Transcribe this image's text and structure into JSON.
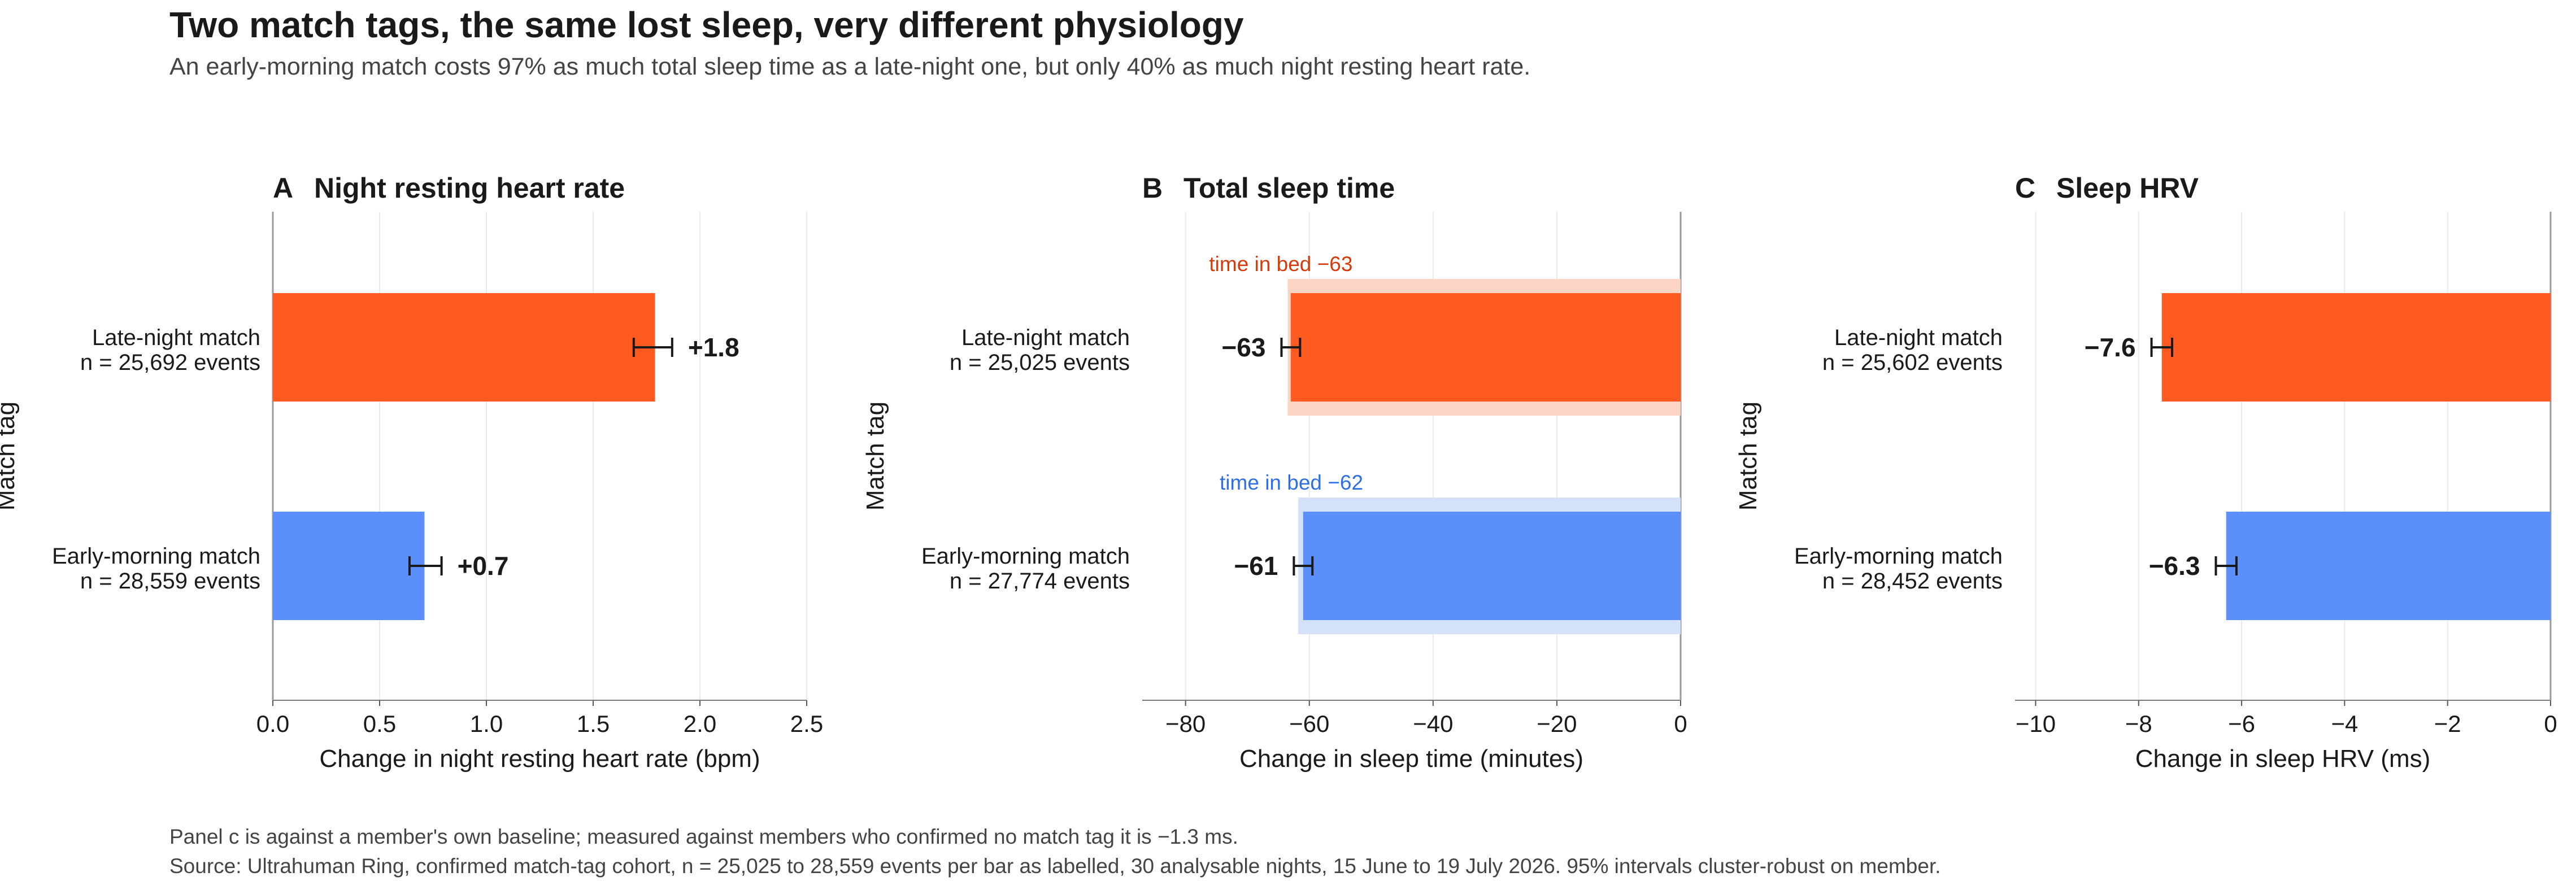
{
  "title": "Two match tags, the same lost sleep, very different physiology",
  "subtitle": "An early-morning match costs 97% as much total sleep time as a late-night one, but only 40% as much night resting heart rate.",
  "colors": {
    "late_night": "#ff5a1f",
    "early_morning": "#5b8ff9",
    "late_night_light": "#fdd3c4",
    "early_morning_light": "#d3e1fb",
    "late_night_text": "#d63a0a",
    "early_morning_text": "#2f6fe4"
  },
  "footnotes": [
    "Panel c is against a member's own baseline; measured against members who confirmed no match tag it is −1.3 ms.",
    "Source: Ultrahuman Ring, confirmed match-tag cohort, n = 25,025 to 28,559 events per bar as labelled, 30 analysable nights, 15 June to 19 July 2026. 95% intervals cluster-robust on member."
  ],
  "chart_data": [
    {
      "type": "bar",
      "orientation": "horizontal",
      "panel_letter": "A",
      "title": "Night resting heart rate",
      "xlabel": "Change in night resting heart rate (bpm)",
      "ylabel": "Match tag",
      "xlim": [
        0,
        2.5
      ],
      "xticks": [
        0,
        0.5,
        1,
        1.5,
        2,
        2.5
      ],
      "xtick_labels": [
        "0.0",
        "0.5",
        "1.0",
        "1.5",
        "2.0",
        "2.5"
      ],
      "grid": true,
      "categories": [
        {
          "name": "Late-night match",
          "n_label": "n = 25,692 events",
          "value": 1.79,
          "ci": [
            1.69,
            1.87
          ],
          "value_label": "+1.8",
          "color_key": "late_night"
        },
        {
          "name": "Early-morning match",
          "n_label": "n = 28,559 events",
          "value": 0.71,
          "ci": [
            0.64,
            0.79
          ],
          "value_label": "+0.7",
          "color_key": "early_morning"
        }
      ]
    },
    {
      "type": "bar",
      "orientation": "horizontal",
      "panel_letter": "B",
      "title": "Total sleep time",
      "xlabel": "Change in sleep time (minutes)",
      "ylabel": "Match tag",
      "xlim": [
        -87,
        0
      ],
      "xticks": [
        -80,
        -60,
        -40,
        -20,
        0
      ],
      "xtick_labels": [
        "−80",
        "−60",
        "−40",
        "−20",
        "0"
      ],
      "grid": true,
      "categories": [
        {
          "name": "Late-night match",
          "n_label": "n = 25,025 events",
          "value": -63,
          "ci": [
            -64.5,
            -61.5
          ],
          "value_label": "−63",
          "color_key": "late_night",
          "secondary": {
            "value": -63.5,
            "label": "time in bed −63",
            "color_key": "late_night_light",
            "text_color_key": "late_night_text"
          }
        },
        {
          "name": "Early-morning match",
          "n_label": "n = 27,774 events",
          "value": -61,
          "ci": [
            -62.5,
            -59.5
          ],
          "value_label": "−61",
          "color_key": "early_morning",
          "secondary": {
            "value": -61.8,
            "label": "time in bed −62",
            "color_key": "early_morning_light",
            "text_color_key": "early_morning_text"
          }
        }
      ]
    },
    {
      "type": "bar",
      "orientation": "horizontal",
      "panel_letter": "C",
      "title": "Sleep HRV",
      "xlabel": "Change in sleep HRV (ms)",
      "ylabel": "Match tag",
      "xlim": [
        -10.4,
        0
      ],
      "xticks": [
        -10,
        -8,
        -6,
        -4,
        -2,
        0
      ],
      "xtick_labels": [
        "−10",
        "−8",
        "−6",
        "−4",
        "−2",
        "0"
      ],
      "grid": true,
      "categories": [
        {
          "name": "Late-night match",
          "n_label": "n = 25,602 events",
          "value": -7.55,
          "ci": [
            -7.75,
            -7.35
          ],
          "value_label": "−7.6",
          "color_key": "late_night"
        },
        {
          "name": "Early-morning match",
          "n_label": "n = 28,452 events",
          "value": -6.3,
          "ci": [
            -6.5,
            -6.1
          ],
          "value_label": "−6.3",
          "color_key": "early_morning"
        }
      ]
    }
  ]
}
